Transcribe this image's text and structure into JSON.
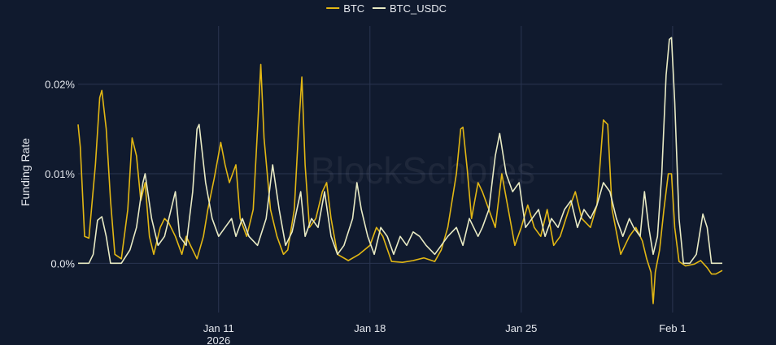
{
  "watermark": "BlockScholes",
  "chart_data": {
    "type": "line",
    "ylabel": "Funding Rate",
    "yticks": [
      {
        "value": 0.0,
        "label": "0.0%"
      },
      {
        "value": 0.01,
        "label": "0.01%"
      },
      {
        "value": 0.02,
        "label": "0.02%"
      }
    ],
    "xticks": [
      {
        "day": 11,
        "label": "Jan 11",
        "sublabel": "2026"
      },
      {
        "day": 18,
        "label": "Jan 18",
        "sublabel": ""
      },
      {
        "day": 25,
        "label": "Jan 25",
        "sublabel": ""
      },
      {
        "day": 32,
        "label": "Feb 1",
        "sublabel": ""
      }
    ],
    "x_unit": "day of January 2026",
    "x_range": [
      4.5,
      34.3
    ],
    "y_range": [
      -0.0055,
      0.0265
    ],
    "grid": true,
    "legend_position": "top-center",
    "series": [
      {
        "name": "BTC",
        "color": "#e2b714",
        "points": [
          [
            4.5,
            0.0155
          ],
          [
            4.6,
            0.013
          ],
          [
            4.8,
            0.003
          ],
          [
            5.0,
            0.0028
          ],
          [
            5.3,
            0.011
          ],
          [
            5.5,
            0.0185
          ],
          [
            5.6,
            0.0193
          ],
          [
            5.8,
            0.015
          ],
          [
            6.0,
            0.007
          ],
          [
            6.2,
            0.001
          ],
          [
            6.5,
            0.0005
          ],
          [
            6.8,
            0.006
          ],
          [
            7.0,
            0.014
          ],
          [
            7.2,
            0.012
          ],
          [
            7.4,
            0.007
          ],
          [
            7.6,
            0.009
          ],
          [
            7.8,
            0.003
          ],
          [
            8.0,
            0.001
          ],
          [
            8.3,
            0.004
          ],
          [
            8.5,
            0.005
          ],
          [
            8.7,
            0.0045
          ],
          [
            9.0,
            0.003
          ],
          [
            9.3,
            0.001
          ],
          [
            9.5,
            0.003
          ],
          [
            9.7,
            0.002
          ],
          [
            10.0,
            0.0005
          ],
          [
            10.3,
            0.003
          ],
          [
            10.5,
            0.006
          ],
          [
            10.8,
            0.0095
          ],
          [
            11.1,
            0.0135
          ],
          [
            11.3,
            0.011
          ],
          [
            11.5,
            0.009
          ],
          [
            11.8,
            0.011
          ],
          [
            12.0,
            0.005
          ],
          [
            12.3,
            0.003
          ],
          [
            12.6,
            0.006
          ],
          [
            12.8,
            0.015
          ],
          [
            12.95,
            0.0222
          ],
          [
            13.1,
            0.014
          ],
          [
            13.4,
            0.006
          ],
          [
            13.7,
            0.003
          ],
          [
            14.0,
            0.001
          ],
          [
            14.2,
            0.0015
          ],
          [
            14.5,
            0.006
          ],
          [
            14.7,
            0.015
          ],
          [
            14.85,
            0.0208
          ],
          [
            15.0,
            0.011
          ],
          [
            15.2,
            0.004
          ],
          [
            15.5,
            0.005
          ],
          [
            15.8,
            0.008
          ],
          [
            16.0,
            0.009
          ],
          [
            16.2,
            0.005
          ],
          [
            16.5,
            0.001
          ],
          [
            17.0,
            0.0003
          ],
          [
            17.5,
            0.001
          ],
          [
            18.0,
            0.002
          ],
          [
            18.3,
            0.004
          ],
          [
            18.6,
            0.003
          ],
          [
            19.0,
            0.0002
          ],
          [
            19.5,
            0.0001
          ],
          [
            20.0,
            0.0003
          ],
          [
            20.5,
            0.0006
          ],
          [
            21.0,
            0.0002
          ],
          [
            21.3,
            0.0015
          ],
          [
            21.6,
            0.004
          ],
          [
            21.8,
            0.007
          ],
          [
            22.0,
            0.01
          ],
          [
            22.2,
            0.015
          ],
          [
            22.3,
            0.0152
          ],
          [
            22.5,
            0.0105
          ],
          [
            22.7,
            0.005
          ],
          [
            23.0,
            0.009
          ],
          [
            23.2,
            0.008
          ],
          [
            23.5,
            0.006
          ],
          [
            23.8,
            0.004
          ],
          [
            24.1,
            0.01
          ],
          [
            24.4,
            0.006
          ],
          [
            24.7,
            0.002
          ],
          [
            25.0,
            0.004
          ],
          [
            25.3,
            0.0065
          ],
          [
            25.6,
            0.004
          ],
          [
            25.9,
            0.003
          ],
          [
            26.2,
            0.006
          ],
          [
            26.5,
            0.002
          ],
          [
            26.8,
            0.003
          ],
          [
            27.2,
            0.006
          ],
          [
            27.5,
            0.008
          ],
          [
            27.8,
            0.005
          ],
          [
            28.2,
            0.004
          ],
          [
            28.5,
            0.0065
          ],
          [
            28.8,
            0.016
          ],
          [
            29.0,
            0.0155
          ],
          [
            29.2,
            0.006
          ],
          [
            29.6,
            0.001
          ],
          [
            30.0,
            0.003
          ],
          [
            30.3,
            0.004
          ],
          [
            30.6,
            0.0025
          ],
          [
            30.8,
            0.0005
          ],
          [
            31.0,
            -0.001
          ],
          [
            31.1,
            -0.0045
          ],
          [
            31.2,
            -0.001
          ],
          [
            31.4,
            0.0015
          ],
          [
            31.6,
            0.006
          ],
          [
            31.8,
            0.01
          ],
          [
            31.95,
            0.01
          ],
          [
            32.1,
            0.004
          ],
          [
            32.3,
            0.0002
          ],
          [
            32.6,
            -0.0003
          ],
          [
            33.0,
            -0.0001
          ],
          [
            33.3,
            0.0003
          ],
          [
            33.6,
            -0.0005
          ],
          [
            33.8,
            -0.0012
          ],
          [
            34.0,
            -0.0012
          ],
          [
            34.3,
            -0.0008
          ]
        ]
      },
      {
        "name": "BTC_USDC",
        "color": "#e8eac4",
        "points": [
          [
            4.5,
            0.0
          ],
          [
            5.0,
            0.0
          ],
          [
            5.2,
            0.001
          ],
          [
            5.4,
            0.0048
          ],
          [
            5.6,
            0.0052
          ],
          [
            5.8,
            0.003
          ],
          [
            6.0,
            0.0
          ],
          [
            6.5,
            0.0
          ],
          [
            6.9,
            0.0015
          ],
          [
            7.2,
            0.004
          ],
          [
            7.5,
            0.009
          ],
          [
            7.6,
            0.01
          ],
          [
            7.9,
            0.005
          ],
          [
            8.2,
            0.002
          ],
          [
            8.5,
            0.003
          ],
          [
            8.8,
            0.006
          ],
          [
            9.0,
            0.008
          ],
          [
            9.2,
            0.003
          ],
          [
            9.5,
            0.002
          ],
          [
            9.8,
            0.008
          ],
          [
            10.0,
            0.015
          ],
          [
            10.1,
            0.0155
          ],
          [
            10.4,
            0.009
          ],
          [
            10.7,
            0.005
          ],
          [
            11.0,
            0.003
          ],
          [
            11.3,
            0.004
          ],
          [
            11.6,
            0.005
          ],
          [
            11.8,
            0.003
          ],
          [
            12.1,
            0.005
          ],
          [
            12.4,
            0.003
          ],
          [
            12.8,
            0.002
          ],
          [
            13.2,
            0.005
          ],
          [
            13.5,
            0.011
          ],
          [
            13.8,
            0.006
          ],
          [
            14.1,
            0.002
          ],
          [
            14.4,
            0.0035
          ],
          [
            14.8,
            0.008
          ],
          [
            15.0,
            0.003
          ],
          [
            15.3,
            0.005
          ],
          [
            15.6,
            0.004
          ],
          [
            15.9,
            0.008
          ],
          [
            16.2,
            0.003
          ],
          [
            16.5,
            0.001
          ],
          [
            16.8,
            0.002
          ],
          [
            17.2,
            0.005
          ],
          [
            17.4,
            0.009
          ],
          [
            17.6,
            0.006
          ],
          [
            17.9,
            0.003
          ],
          [
            18.2,
            0.001
          ],
          [
            18.5,
            0.004
          ],
          [
            18.8,
            0.003
          ],
          [
            19.1,
            0.001
          ],
          [
            19.4,
            0.003
          ],
          [
            19.7,
            0.002
          ],
          [
            20.0,
            0.0035
          ],
          [
            20.3,
            0.003
          ],
          [
            20.6,
            0.002
          ],
          [
            21.0,
            0.001
          ],
          [
            21.3,
            0.002
          ],
          [
            21.6,
            0.003
          ],
          [
            22.0,
            0.004
          ],
          [
            22.3,
            0.002
          ],
          [
            22.6,
            0.005
          ],
          [
            23.0,
            0.003
          ],
          [
            23.2,
            0.004
          ],
          [
            23.5,
            0.006
          ],
          [
            23.8,
            0.012
          ],
          [
            24.0,
            0.0145
          ],
          [
            24.3,
            0.01
          ],
          [
            24.6,
            0.008
          ],
          [
            24.9,
            0.009
          ],
          [
            25.2,
            0.004
          ],
          [
            25.5,
            0.005
          ],
          [
            25.8,
            0.006
          ],
          [
            26.1,
            0.003
          ],
          [
            26.4,
            0.005
          ],
          [
            26.7,
            0.004
          ],
          [
            27.0,
            0.006
          ],
          [
            27.3,
            0.007
          ],
          [
            27.6,
            0.004
          ],
          [
            27.9,
            0.006
          ],
          [
            28.2,
            0.005
          ],
          [
            28.5,
            0.0065
          ],
          [
            28.8,
            0.009
          ],
          [
            29.1,
            0.008
          ],
          [
            29.4,
            0.005
          ],
          [
            29.7,
            0.003
          ],
          [
            30.0,
            0.005
          ],
          [
            30.2,
            0.004
          ],
          [
            30.5,
            0.003
          ],
          [
            30.7,
            0.008
          ],
          [
            30.9,
            0.004
          ],
          [
            31.1,
            0.001
          ],
          [
            31.3,
            0.003
          ],
          [
            31.5,
            0.01
          ],
          [
            31.7,
            0.021
          ],
          [
            31.85,
            0.025
          ],
          [
            31.95,
            0.0252
          ],
          [
            32.1,
            0.018
          ],
          [
            32.3,
            0.005
          ],
          [
            32.5,
            0.0
          ],
          [
            32.8,
            0.0
          ],
          [
            33.1,
            0.001
          ],
          [
            33.4,
            0.0055
          ],
          [
            33.6,
            0.004
          ],
          [
            33.8,
            0.0
          ],
          [
            34.3,
            0.0
          ]
        ]
      }
    ]
  }
}
